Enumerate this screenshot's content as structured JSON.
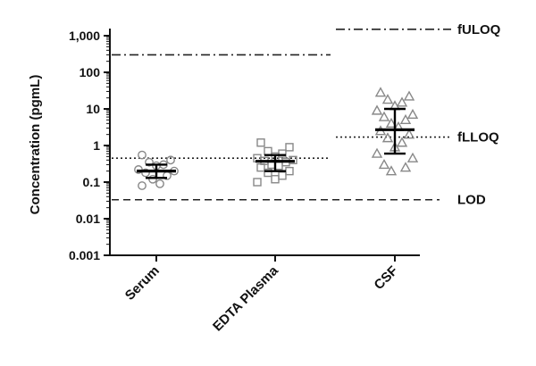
{
  "chart_data": {
    "type": "scatter",
    "title": "",
    "xlabel": "",
    "ylabel": "Concentration (pgmL)",
    "y_scale": "log",
    "ylim": [
      0.001,
      1000
    ],
    "y_ticks": [
      {
        "value": 0.001,
        "label": "0.001"
      },
      {
        "value": 0.01,
        "label": "0.01"
      },
      {
        "value": 0.1,
        "label": "0.1"
      },
      {
        "value": 1,
        "label": "1"
      },
      {
        "value": 10,
        "label": "10"
      },
      {
        "value": 100,
        "label": "100"
      },
      {
        "value": 1000,
        "label": "1,000"
      }
    ],
    "grid": false,
    "categories": [
      "Serum",
      "EDTA Plasma",
      "CSF"
    ],
    "series": [
      {
        "category": "Serum",
        "marker": "circle",
        "values": [
          0.55,
          0.4,
          0.35,
          0.3,
          0.28,
          0.22,
          0.2,
          0.18,
          0.15,
          0.12,
          0.09,
          0.08
        ],
        "center": 0.2,
        "error_low": 0.13,
        "error_high": 0.3
      },
      {
        "category": "EDTA Plasma",
        "marker": "square",
        "values": [
          1.2,
          0.9,
          0.7,
          0.6,
          0.5,
          0.45,
          0.4,
          0.38,
          0.35,
          0.3,
          0.28,
          0.25,
          0.2,
          0.18,
          0.15,
          0.12,
          0.1
        ],
        "center": 0.37,
        "error_low": 0.2,
        "error_high": 0.55
      },
      {
        "category": "CSF",
        "marker": "triangle",
        "values": [
          28,
          22,
          18,
          15,
          12,
          9,
          7,
          6,
          5,
          4,
          3.2,
          2.5,
          2,
          1.6,
          1.2,
          0.9,
          0.6,
          0.45,
          0.3,
          0.25,
          0.2
        ],
        "center": 2.7,
        "error_low": 0.6,
        "error_high": 10
      }
    ],
    "reference_lines": [
      {
        "label": "fULOQ",
        "value": 1500,
        "style": "dash-dot",
        "x_start": "CSF"
      },
      {
        "label": "",
        "value": 300,
        "style": "dash-dot",
        "x_start": "axis"
      },
      {
        "label": "fLLOQ",
        "value": 1.7,
        "style": "dotted",
        "x_start": "CSF"
      },
      {
        "label": "",
        "value": 0.45,
        "style": "dotted",
        "x_start": "axis"
      },
      {
        "label": "LOD",
        "value": 0.033,
        "style": "dashed",
        "x_start": "axis"
      }
    ],
    "colors": {
      "axis": "#111111",
      "markers": "#888888",
      "summary": "#000000"
    }
  }
}
